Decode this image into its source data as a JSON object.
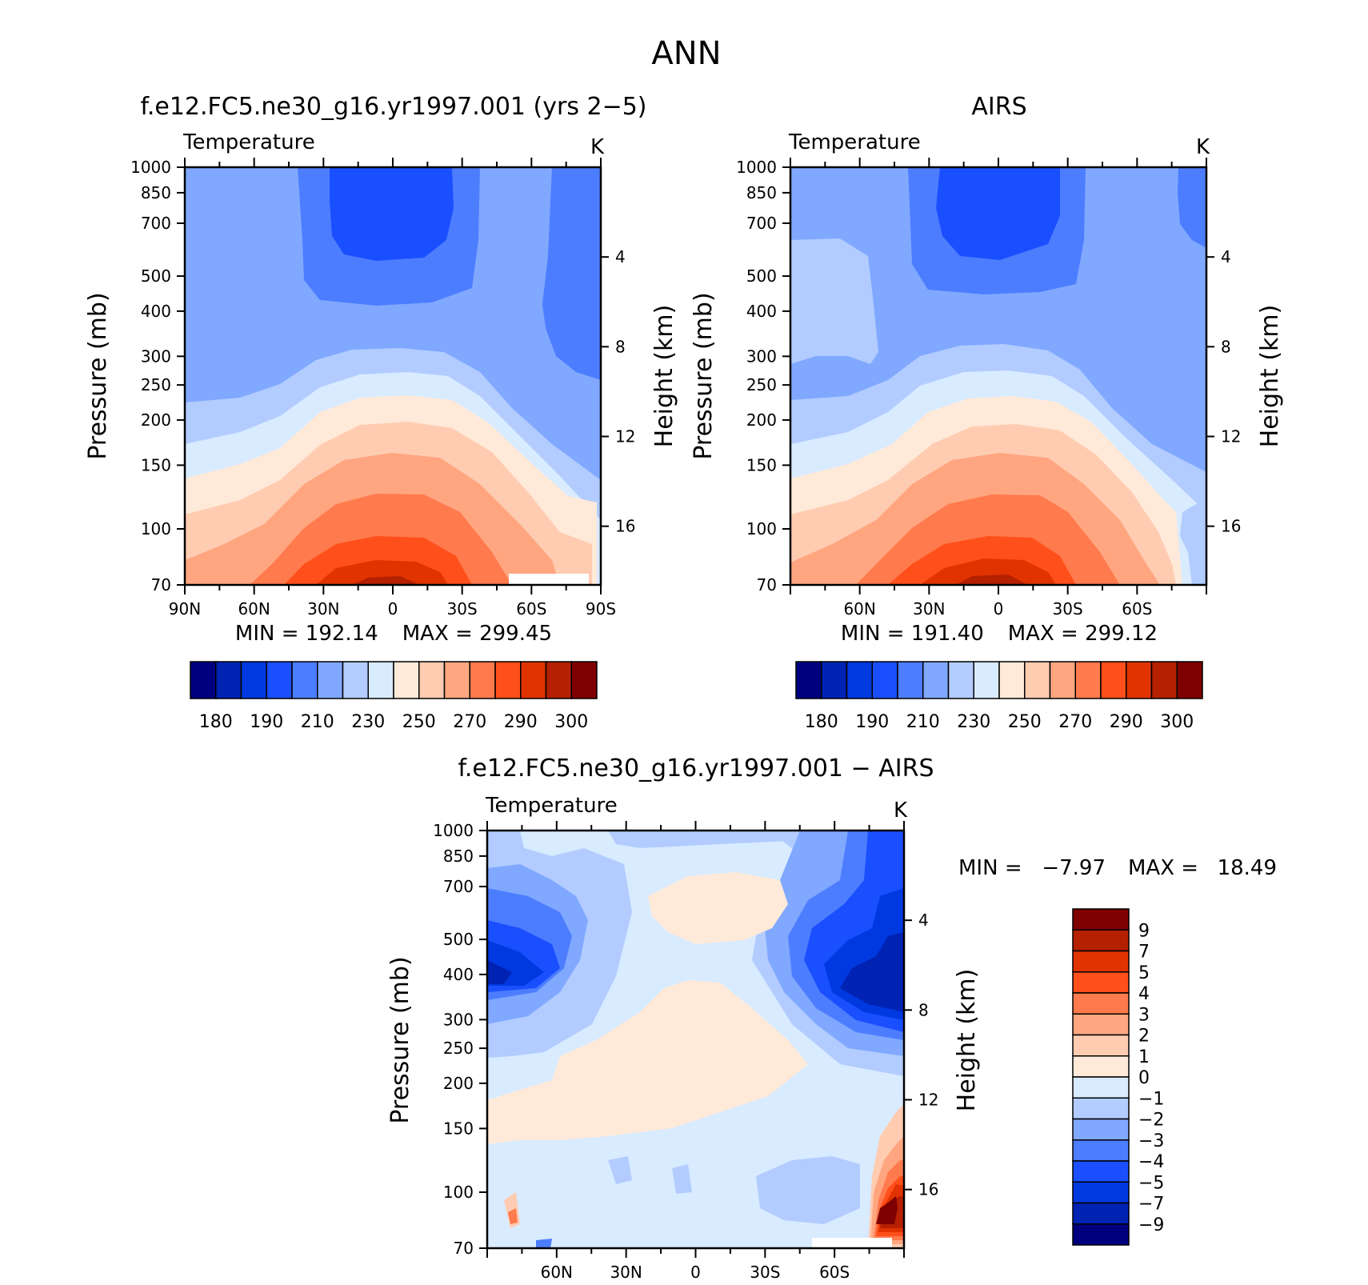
{
  "page_title": "ANN",
  "colors": {
    "abs_scale": [
      "#00007f",
      "#0023b4",
      "#0039e0",
      "#1a4fff",
      "#4d7dff",
      "#80a8ff",
      "#b2ccff",
      "#d9ebff",
      "#ffead9",
      "#ffccb2",
      "#ffa680",
      "#ff7a4d",
      "#ff4f1a",
      "#e03300",
      "#b42000",
      "#7f0000"
    ],
    "diff_scale": [
      "#00007f",
      "#0023b4",
      "#0039e0",
      "#1a4fff",
      "#4d7dff",
      "#80a8ff",
      "#b2ccff",
      "#d9ebff",
      "#ffead9",
      "#ffccb2",
      "#ffa680",
      "#ff7a4d",
      "#ff4f1a",
      "#e03300",
      "#b42000",
      "#7f0000"
    ]
  },
  "chart_data": [
    {
      "id": "model",
      "type": "contour",
      "title": "f.e12.FC5.ne30_g16.yr1997.001 (yrs 2−5)",
      "variable": "Temperature",
      "units": "K",
      "ylabel": "Pressure (mb)",
      "ylabel_right": "Height (km)",
      "y_scale": "log",
      "ylim": [
        1000,
        70
      ],
      "y_ticks": [
        "70",
        "100",
        "150",
        "200",
        "250",
        "300",
        "400",
        "500",
        "700",
        "850",
        "1000"
      ],
      "x_ticks": [
        "90N",
        "60N",
        "30N",
        "0",
        "30S",
        "60S",
        "90S"
      ],
      "right_ticks": [
        "4",
        "8",
        "12",
        "16"
      ],
      "min_label": "MIN = 192.14",
      "max_label": "MAX = 299.45",
      "colorbar_labels": [
        "180",
        "190",
        "210",
        "230",
        "250",
        "270",
        "290",
        "300"
      ]
    },
    {
      "id": "obs",
      "type": "contour",
      "title": "AIRS",
      "variable": "Temperature",
      "units": "K",
      "ylabel": "Pressure (mb)",
      "ylabel_right": "Height (km)",
      "y_scale": "log",
      "ylim": [
        1000,
        70
      ],
      "y_ticks": [
        "70",
        "100",
        "150",
        "200",
        "250",
        "300",
        "400",
        "500",
        "700",
        "850",
        "1000"
      ],
      "x_ticks": [
        "60N",
        "30N",
        "0",
        "30S",
        "60S"
      ],
      "right_ticks": [
        "4",
        "8",
        "12",
        "16"
      ],
      "min_label": "MIN = 191.40",
      "max_label": "MAX = 299.12",
      "colorbar_labels": [
        "180",
        "190",
        "210",
        "230",
        "250",
        "270",
        "290",
        "300"
      ]
    },
    {
      "id": "diff",
      "type": "contour",
      "title": "f.e12.FC5.ne30_g16.yr1997.001 − AIRS",
      "variable": "Temperature",
      "units": "K",
      "ylabel": "Pressure (mb)",
      "ylabel_right": "Height (km)",
      "y_scale": "log",
      "ylim": [
        1000,
        70
      ],
      "y_ticks": [
        "70",
        "100",
        "150",
        "200",
        "250",
        "300",
        "400",
        "500",
        "700",
        "850",
        "1000"
      ],
      "x_ticks": [
        "60N",
        "30N",
        "0",
        "30S",
        "60S"
      ],
      "right_ticks": [
        "4",
        "8",
        "12",
        "16"
      ],
      "min_label": "MIN =",
      "min_value": "−7.97",
      "max_label": "MAX =",
      "max_value": "18.49",
      "colorbar_labels": [
        "9",
        "7",
        "5",
        "4",
        "3",
        "2",
        "1",
        "0",
        "−1",
        "−2",
        "−3",
        "−4",
        "−5",
        "−7",
        "−9"
      ]
    }
  ]
}
